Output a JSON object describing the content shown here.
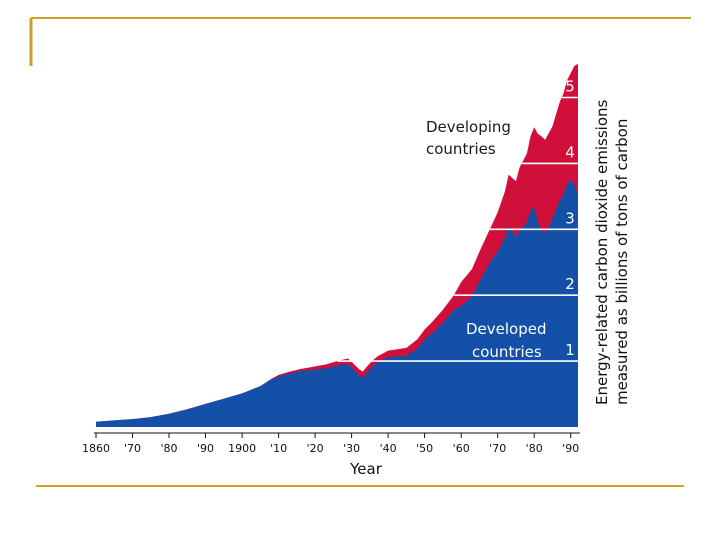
{
  "slide": {
    "accent_color": "#c9a227"
  },
  "chart_data": {
    "type": "area",
    "stacked": true,
    "title": "",
    "xlabel": "Year",
    "ylabel_lines": [
      "Energy-related carbon dioxide emissions",
      "measured as billions of tons of carbon"
    ],
    "xlim": [
      1860,
      1992
    ],
    "ylim": [
      0,
      5.6
    ],
    "x_ticks": [
      1860,
      1870,
      1880,
      1890,
      1900,
      1910,
      1920,
      1930,
      1940,
      1950,
      1960,
      1970,
      1980,
      1990
    ],
    "x_tick_labels": [
      "1860",
      "'70",
      "'80",
      "'90",
      "1900",
      "'10",
      "'20",
      "'30",
      "'40",
      "'50",
      "'60",
      "'70",
      "'80",
      "'90"
    ],
    "gridlines": [
      1,
      2,
      3,
      4,
      5
    ],
    "gridline_labels": [
      "1",
      "2",
      "3",
      "4",
      "5"
    ],
    "series_colors": {
      "developed": "#1450a8",
      "developing": "#d0103a"
    },
    "annotations": {
      "developing": [
        "Developing",
        "countries"
      ],
      "developed": [
        "Developed",
        "countries"
      ]
    },
    "x": [
      1860,
      1865,
      1870,
      1875,
      1880,
      1885,
      1890,
      1895,
      1900,
      1905,
      1908,
      1910,
      1913,
      1916,
      1918,
      1920,
      1923,
      1926,
      1929,
      1930,
      1932,
      1933,
      1935,
      1937,
      1940,
      1945,
      1948,
      1950,
      1952,
      1955,
      1958,
      1960,
      1963,
      1965,
      1968,
      1970,
      1972,
      1973,
      1975,
      1976,
      1978,
      1979,
      1980,
      1981,
      1982,
      1983,
      1985,
      1987,
      1988,
      1989,
      1990,
      1991,
      1992
    ],
    "series": [
      {
        "name": "Developed countries",
        "values": [
          0.08,
          0.1,
          0.12,
          0.15,
          0.2,
          0.27,
          0.35,
          0.43,
          0.51,
          0.62,
          0.72,
          0.77,
          0.81,
          0.85,
          0.86,
          0.87,
          0.89,
          0.93,
          0.96,
          0.9,
          0.79,
          0.75,
          0.88,
          0.98,
          1.06,
          1.08,
          1.19,
          1.33,
          1.42,
          1.58,
          1.78,
          1.84,
          1.99,
          2.21,
          2.51,
          2.66,
          2.88,
          3.05,
          2.88,
          2.98,
          3.11,
          3.28,
          3.34,
          3.11,
          2.98,
          2.94,
          3.16,
          3.44,
          3.53,
          3.69,
          3.75,
          3.68,
          3.52
        ]
      },
      {
        "name": "Developing countries",
        "values": [
          0.0,
          0.0,
          0.0,
          0.0,
          0.0,
          0.0,
          0.0,
          0.0,
          0.0,
          0.0,
          0.01,
          0.02,
          0.03,
          0.03,
          0.04,
          0.05,
          0.06,
          0.07,
          0.08,
          0.09,
          0.09,
          0.09,
          0.09,
          0.09,
          0.1,
          0.12,
          0.14,
          0.15,
          0.17,
          0.2,
          0.22,
          0.36,
          0.41,
          0.45,
          0.51,
          0.6,
          0.7,
          0.78,
          0.85,
          0.96,
          1.04,
          1.13,
          1.21,
          1.34,
          1.43,
          1.42,
          1.4,
          1.49,
          1.53,
          1.57,
          1.62,
          1.8,
          1.99
        ]
      }
    ]
  }
}
